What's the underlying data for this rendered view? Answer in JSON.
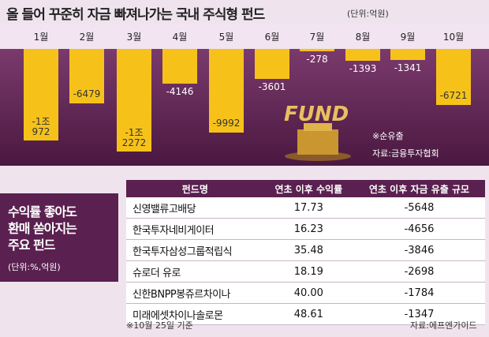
{
  "chart_data": {
    "type": "bar",
    "title": "올 들어 꾸준히 자금 빠져나가는 국내 주식형 펀드",
    "unit": "(단위:억원)",
    "categories": [
      "1월",
      "2월",
      "3월",
      "4월",
      "5월",
      "6월",
      "7월",
      "8월",
      "9월",
      "10월"
    ],
    "values": [
      -10972,
      -6479,
      -12272,
      -4146,
      -9992,
      -3601,
      -278,
      -1393,
      -1341,
      -6721
    ],
    "value_labels": [
      "-1조\n972",
      "-6479",
      "-1조\n2272",
      "-4146",
      "-9992",
      "-3601",
      "-278",
      "-1393",
      "-1341",
      "-6721"
    ],
    "color": "#f6c21a",
    "ylim": [
      -13000,
      0
    ],
    "illustration_text": "FUND",
    "note": "※순유출",
    "source": "자료:금융투자협회"
  },
  "table": {
    "side_title": "수익률 좋아도\n환매 쏟아지는\n주요 펀드",
    "side_unit": "(단위:%,억원)",
    "header": [
      "펀드명",
      "연초 이후 수익률",
      "연초 이후 자금 유출 규모"
    ],
    "rows": [
      [
        "신영밸류고배당",
        "17.73",
        "-5648"
      ],
      [
        "한국투자네비게이터",
        "16.23",
        "-4656"
      ],
      [
        "한국투자삼성그룹적립식",
        "35.48",
        "-3846"
      ],
      [
        "슈로더 유로",
        "18.19",
        "-2698"
      ],
      [
        "신한BNPP봉쥬르차이나",
        "40.00",
        "-1784"
      ],
      [
        "미래에셋차이나솔로몬",
        "48.61",
        "-1347"
      ]
    ],
    "footnote": "※10월 25일 기준",
    "source": "자료:에프엔가이드"
  }
}
